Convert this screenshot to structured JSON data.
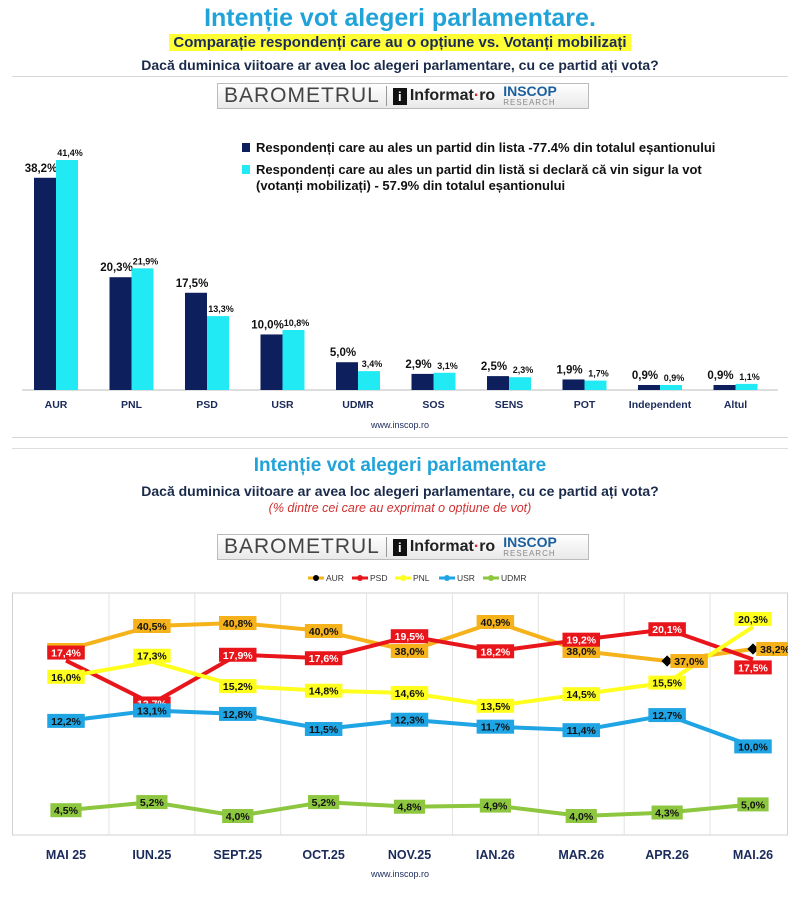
{
  "panel1": {
    "title": "Intenție vot alegeri parlamentare.",
    "subtitle": "Comparație respondenți care au o opțiune vs. Votanți mobilizați",
    "question": "Dacă duminica viitoare ar avea loc alegeri parlamentare, cu ce partid ați vota?",
    "footer": "www.inscop.ro"
  },
  "panel2": {
    "title": "Intenție vot alegeri parlamentare",
    "question": "Dacă duminica viitoare ar avea loc alegeri parlamentare, cu ce partid ați vota?",
    "note": "(% dintre cei care au exprimat o opțiune de vot)",
    "footer": "www.inscop.ro"
  },
  "banner": {
    "barometrul": "BAROMETRUL",
    "informat": "Informat",
    "informat_suffix": "ro",
    "inscop": "INSCOP",
    "research": "RESEARCH"
  },
  "chart_data": [
    {
      "type": "bar",
      "categories": [
        "AUR",
        "PNL",
        "PSD",
        "USR",
        "UDMR",
        "SOS",
        "SENS",
        "POT",
        "Independent",
        "Altul"
      ],
      "series": [
        {
          "name": "Respondenți care au ales un partid din lista -77.4% din totalul eșantionului",
          "color": "#0d1f5c",
          "values": [
            38.2,
            20.3,
            17.5,
            10.0,
            5.0,
            2.9,
            2.5,
            1.9,
            0.9,
            0.9
          ],
          "labels": [
            "38,2%",
            "20,3%",
            "17,5%",
            "10,0%",
            "5,0%",
            "2,9%",
            "2,5%",
            "1,9%",
            "0,9%",
            "0,9%"
          ]
        },
        {
          "name": "Respondenți care au ales un partid din listă si declară că vin sigur la vot (votanți mobilizați) - 57.9% din totalul eșantionului",
          "color": "#22eaf5",
          "values": [
            41.4,
            21.9,
            13.3,
            10.8,
            3.4,
            3.1,
            2.3,
            1.7,
            0.9,
            1.1
          ],
          "labels": [
            "41,4%",
            "21,9%",
            "13,3%",
            "10,8%",
            "3,4%",
            "3,1%",
            "2,3%",
            "1,7%",
            "0,9%",
            "1,1%"
          ]
        }
      ],
      "ylim": [
        0,
        45
      ],
      "legend_position": "top-right"
    },
    {
      "type": "line",
      "categories": [
        "MAI 25",
        "IUN.25",
        "SEPT.25",
        "OCT.25",
        "NOV.25",
        "IAN.26",
        "MAR.26",
        "APR.26",
        "MAI.26"
      ],
      "series": [
        {
          "name": "AUR",
          "color": "#f5b21b",
          "values": [
            38.1,
            40.5,
            40.8,
            40.0,
            38.0,
            40.9,
            38.0,
            37.0,
            38.2
          ],
          "labels": [
            "38,1%",
            "40,5%",
            "40,8%",
            "40,0%",
            "38,0%",
            "40,9%",
            "38,0%",
            "37,0%",
            "38,2%"
          ]
        },
        {
          "name": "PSD",
          "color": "#e8151b",
          "values": [
            17.4,
            13.7,
            17.9,
            17.6,
            19.5,
            18.2,
            19.2,
            20.1,
            17.5
          ],
          "labels": [
            "17,4%",
            "13,7%",
            "17,9%",
            "17,6%",
            "19,5%",
            "18,2%",
            "19,2%",
            "20,1%",
            "17,5%"
          ]
        },
        {
          "name": "PNL",
          "color": "#ffff1e",
          "values": [
            16.0,
            17.3,
            15.2,
            14.8,
            14.6,
            13.5,
            14.5,
            15.5,
            20.3
          ],
          "labels": [
            "16,0%",
            "17,3%",
            "15,2%",
            "14,8%",
            "14,6%",
            "13,5%",
            "14,5%",
            "15,5%",
            "20,3%"
          ]
        },
        {
          "name": "USR",
          "color": "#1fa4e4",
          "values": [
            12.2,
            13.1,
            12.8,
            11.5,
            12.3,
            11.7,
            11.4,
            12.7,
            10.0
          ],
          "labels": [
            "12,2%",
            "13,1%",
            "12,8%",
            "11,5%",
            "12,3%",
            "11,7%",
            "11,4%",
            "12,7%",
            "10,0%"
          ]
        },
        {
          "name": "UDMR",
          "color": "#8dc63f",
          "values": [
            4.5,
            5.2,
            4.0,
            5.2,
            4.8,
            4.9,
            4.0,
            4.3,
            5.0
          ],
          "labels": [
            "4,5%",
            "5,2%",
            "4,0%",
            "5,2%",
            "4,8%",
            "4,9%",
            "4,0%",
            "4,3%",
            "5,0%"
          ]
        }
      ],
      "legend_position": "top"
    }
  ]
}
